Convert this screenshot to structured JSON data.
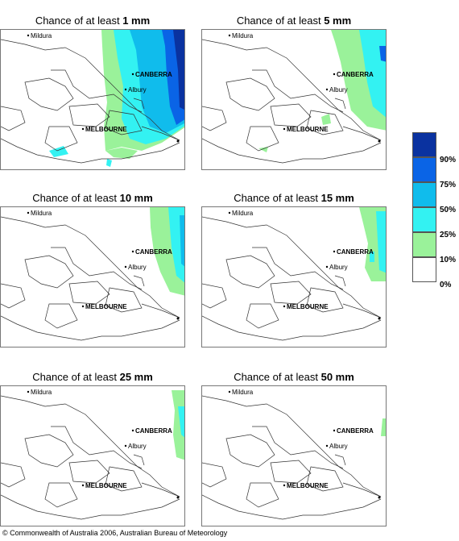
{
  "panels": [
    {
      "title_prefix": "Chance of at least ",
      "amount": "1 mm",
      "level": 1
    },
    {
      "title_prefix": "Chance of at least ",
      "amount": "5 mm",
      "level": 2
    },
    {
      "title_prefix": "Chance of at least ",
      "amount": "10 mm",
      "level": 3
    },
    {
      "title_prefix": "Chance of at least ",
      "amount": "15 mm",
      "level": 4
    },
    {
      "title_prefix": "Chance of at least ",
      "amount": "25 mm",
      "level": 5
    },
    {
      "title_prefix": "Chance of at least ",
      "amount": "50 mm",
      "level": 6
    }
  ],
  "places": {
    "mildura": "Mildura",
    "canberra": "CANBERRA",
    "albury": "Albury",
    "melbourne": "MELBOURNE"
  },
  "legend": {
    "labels": [
      "90%",
      "75%",
      "50%",
      "25%",
      "10%",
      "0%"
    ],
    "colors": [
      "#0a32a0",
      "#0a64e6",
      "#10bcec",
      "#33f2f2",
      "#9af29a",
      "#ffffff"
    ]
  },
  "copyright": "© Commonwealth of Australia 2006, Australian Bureau of Meteorology"
}
